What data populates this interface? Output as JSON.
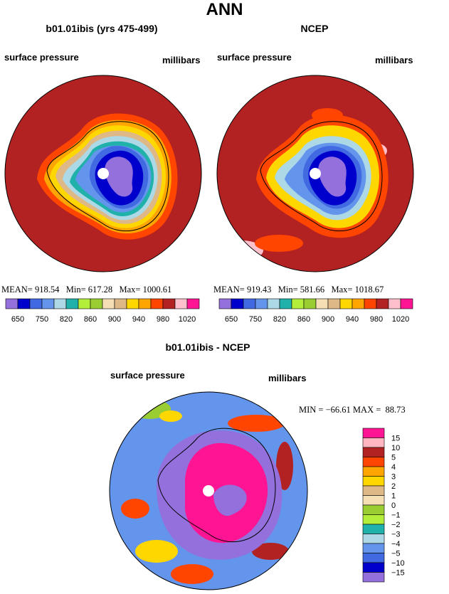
{
  "page_title": "ANN",
  "panels": [
    {
      "title": "b01.01ibis (yrs 475-499)",
      "left_label": "surface pressure",
      "right_label": "millibars",
      "mean_label": "MEAN=",
      "mean": "918.54",
      "min_label": "Min=",
      "min": "617.28",
      "max_label": "Max=",
      "max": "1000.61"
    },
    {
      "title": "NCEP",
      "left_label": "surface pressure",
      "right_label": "millibars",
      "mean_label": "MEAN=",
      "mean": "919.43",
      "min_label": "Min=",
      "min": "581.66",
      "max_label": "Max=",
      "max": "1018.67"
    }
  ],
  "diff_panel": {
    "title": "b01.01ibis - NCEP",
    "left_label": "surface pressure",
    "right_label": "millibars",
    "min_label": "MIN =",
    "min": "−66.61",
    "max_label": "MAX =",
    "max": "88.73"
  },
  "chart_data": [
    {
      "type": "heatmap",
      "title": "b01.01ibis (yrs 475-499)",
      "field": "surface pressure",
      "units": "millibars",
      "projection": "south polar stereographic",
      "mean": 918.54,
      "min": 617.28,
      "max": 1000.61,
      "colorbar_levels": [
        650,
        700,
        750,
        800,
        820,
        840,
        860,
        880,
        900,
        920,
        940,
        960,
        980,
        1000,
        1020
      ],
      "colorbar_tick_labels": [
        "650",
        "750",
        "820",
        "860",
        "900",
        "940",
        "980",
        "1020"
      ],
      "colorbar_colors": [
        "#9370db",
        "#0000cd",
        "#4169e1",
        "#6495ed",
        "#add8e6",
        "#20b2aa",
        "#b3ee3a",
        "#9acd32",
        "#f5deb3",
        "#deb887",
        "#ffd700",
        "#ffa500",
        "#ff4500",
        "#b22222",
        "#ffc0cb",
        "#ff1493"
      ]
    },
    {
      "type": "heatmap",
      "title": "NCEP",
      "field": "surface pressure",
      "units": "millibars",
      "projection": "south polar stereographic",
      "mean": 919.43,
      "min": 581.66,
      "max": 1018.67,
      "colorbar_levels": [
        650,
        700,
        750,
        800,
        820,
        840,
        860,
        880,
        900,
        920,
        940,
        960,
        980,
        1000,
        1020
      ],
      "colorbar_tick_labels": [
        "650",
        "750",
        "820",
        "860",
        "900",
        "940",
        "980",
        "1020"
      ],
      "colorbar_colors": [
        "#9370db",
        "#0000cd",
        "#4169e1",
        "#6495ed",
        "#add8e6",
        "#20b2aa",
        "#b3ee3a",
        "#9acd32",
        "#f5deb3",
        "#deb887",
        "#ffd700",
        "#ffa500",
        "#ff4500",
        "#b22222",
        "#ffc0cb",
        "#ff1493"
      ]
    },
    {
      "type": "heatmap",
      "title": "b01.01ibis - NCEP",
      "field": "surface pressure",
      "units": "millibars",
      "projection": "south polar stereographic",
      "min": -66.61,
      "max": 88.73,
      "colorbar_tick_labels": [
        "15",
        "10",
        "5",
        "4",
        "3",
        "2",
        "1",
        "0",
        "−1",
        "−2",
        "−3",
        "−4",
        "−5",
        "−10",
        "−15"
      ],
      "colorbar_colors": [
        "#ff1493",
        "#ffb6c1",
        "#b22222",
        "#ff4500",
        "#ffa500",
        "#ffd700",
        "#deb887",
        "#f5deb3",
        "#9acd32",
        "#b3ee3a",
        "#20b2aa",
        "#add8e6",
        "#6495ed",
        "#4169e1",
        "#0000cd",
        "#9370db"
      ]
    }
  ]
}
